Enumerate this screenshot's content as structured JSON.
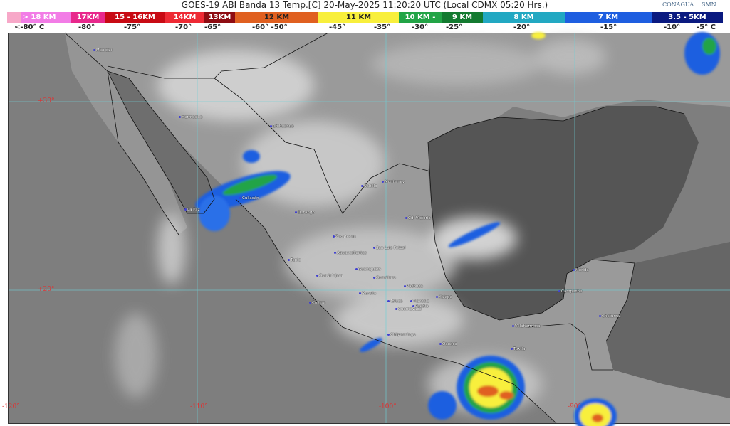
{
  "header": {
    "title": "GOES-19 ABI Banda 13 Temp.[C] 20-May-2025 11:20:20 UTC (Local CDMX  05:20 Hrs.)",
    "logos": [
      "CONAGUA",
      "SMN"
    ]
  },
  "legend": {
    "bands": [
      {
        "label": "> 18 KM",
        "color": "#f27ce6"
      },
      {
        "label": "17KM",
        "color": "#e8288c"
      },
      {
        "label": "15 - 16KM",
        "color": "#c80a14"
      },
      {
        "label": "14KM",
        "color": "#ee2a34"
      },
      {
        "label": "13KM",
        "color": "#8e0c12"
      },
      {
        "label": "12 KM",
        "color": "#e06020"
      },
      {
        "label": "11 KM",
        "color": "#f8ef3c"
      },
      {
        "label": "10 KM -",
        "color": "#22a446"
      },
      {
        "label": "9 KM",
        "color": "#137a30"
      },
      {
        "label": "8 KM",
        "color": "#22a8c2"
      },
      {
        "label": "7 KM",
        "color": "#1e5ee0"
      },
      {
        "label": "3.5 - 5KM",
        "color": "#0a1a80"
      }
    ],
    "temps": [
      "<-80° C",
      "-80°",
      "-75°",
      "-70°",
      "-65°",
      "-60°  -50°",
      "-45°",
      "-35°",
      "-30°",
      "-25°",
      "-20°",
      "-15°",
      "-10°",
      "-5°  C"
    ]
  },
  "grid": {
    "lat_labels": [
      "+30°",
      "+20°"
    ],
    "lon_labels": [
      "-120°",
      "-110°",
      "-100°",
      "-90°"
    ]
  },
  "cities": [
    "Mexicali",
    "Hermosillo",
    "Chihuahua",
    "Culiacán",
    "La Paz",
    "Durango",
    "Saltillo",
    "Monterrey",
    "Cd. Victoria",
    "Zacatecas",
    "San Luis Potosí",
    "Aguascalientes",
    "Tepic",
    "Guanajuato",
    "Guadalajara",
    "Querétaro",
    "Pachuca",
    "Morelia",
    "Xalapa",
    "Colima",
    "Toluca",
    "Tlaxcala",
    "Puebla",
    "Cuernavaca",
    "Chilpancingo",
    "Oaxaca",
    "Villahermosa",
    "Tuxtla",
    "Mérida",
    "Campeche",
    "Chetumal"
  ]
}
